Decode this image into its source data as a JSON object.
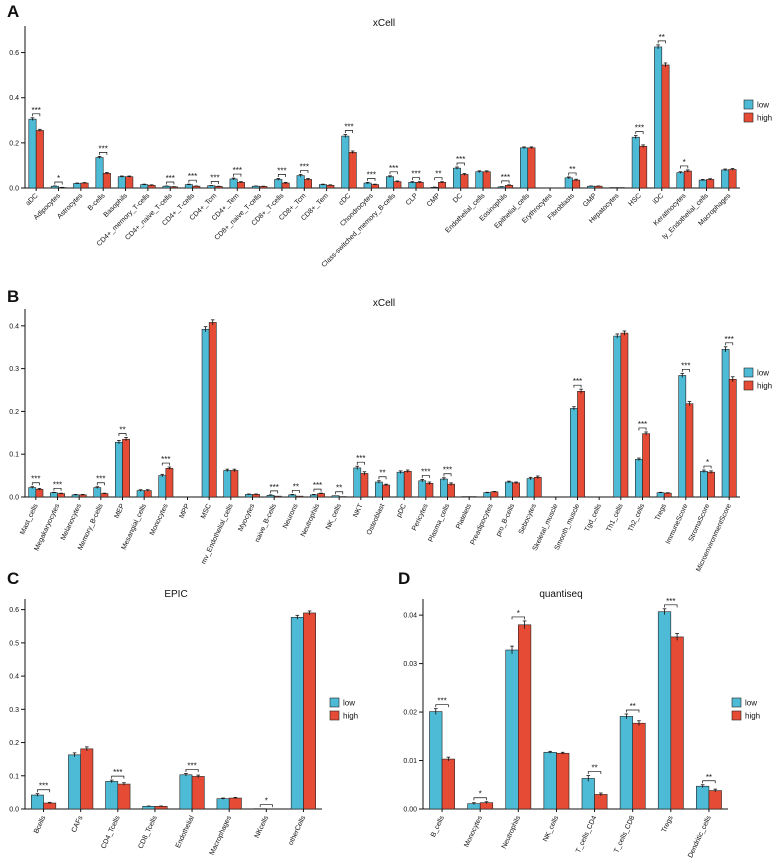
{
  "colors": {
    "low": "#4DBBD5",
    "high": "#E64B35",
    "error": "#111111"
  },
  "chart_data": [
    {
      "panel": "A",
      "type": "bar",
      "title": "xCell",
      "legend": [
        "low",
        "high"
      ],
      "ylim": [
        0,
        0.7
      ],
      "yticks": [
        0,
        0.2,
        0.4,
        0.6
      ],
      "ytick_labels": [
        "0.0",
        "0.2",
        "0.4",
        "0.6"
      ],
      "categories": [
        "aDC",
        "Adipocytes",
        "Astrocytes",
        "B-cells",
        "Basophils",
        "CD4+_memory_T-cells",
        "CD4+_naive_T-cells",
        "CD4+_T-cells",
        "CD4+_Tcm",
        "CD4+_Tem",
        "CD8+_naive_T-cells",
        "CD8+_T-cells",
        "CD8+_Tcm",
        "CD8+_Tem",
        "cDC",
        "Chondrocytes",
        "Class-switched_memory_B-cells",
        "CLP",
        "CMP",
        "DC",
        "Endothelial_cells",
        "Eosinophils",
        "Epithelial_cells",
        "Erythrocytes",
        "Fibroblasts",
        "GMP",
        "Hepatocytes",
        "HSC",
        "iDC",
        "Keratinocytes",
        "ly_Endothelial_cells",
        "Macrophages"
      ],
      "series": [
        {
          "name": "low",
          "values": [
            0.305,
            0.008,
            0.02,
            0.135,
            0.05,
            0.015,
            0.008,
            0.015,
            0.01,
            0.04,
            0.008,
            0.038,
            0.055,
            0.015,
            0.23,
            0.022,
            0.05,
            0.025,
            0.003,
            0.088,
            0.072,
            0.005,
            0.178,
            0.001,
            0.045,
            0.008,
            0.002,
            0.225,
            0.625,
            0.068,
            0.035,
            0.08
          ],
          "errors": [
            0.006,
            0.001,
            0.002,
            0.005,
            0.003,
            0.002,
            0.001,
            0.002,
            0.001,
            0.004,
            0.001,
            0.004,
            0.005,
            0.002,
            0.007,
            0.003,
            0.004,
            0.003,
            0.001,
            0.005,
            0.004,
            0.001,
            0.004,
            0.0,
            0.004,
            0.001,
            0.0,
            0.007,
            0.009,
            0.004,
            0.003,
            0.004
          ]
        },
        {
          "name": "high",
          "values": [
            0.255,
            0.002,
            0.022,
            0.065,
            0.05,
            0.012,
            0.005,
            0.008,
            0.007,
            0.025,
            0.007,
            0.022,
            0.038,
            0.012,
            0.158,
            0.015,
            0.028,
            0.025,
            0.025,
            0.06,
            0.072,
            0.012,
            0.178,
            0.001,
            0.035,
            0.008,
            0.002,
            0.185,
            0.545,
            0.075,
            0.038,
            0.082
          ],
          "errors": [
            0.005,
            0.001,
            0.002,
            0.004,
            0.003,
            0.002,
            0.001,
            0.001,
            0.001,
            0.003,
            0.001,
            0.003,
            0.004,
            0.002,
            0.006,
            0.002,
            0.003,
            0.003,
            0.003,
            0.004,
            0.004,
            0.002,
            0.004,
            0.0,
            0.004,
            0.001,
            0.0,
            0.006,
            0.009,
            0.005,
            0.003,
            0.004
          ]
        }
      ],
      "significance": [
        "***",
        "*",
        "",
        "***",
        "",
        "",
        "***",
        "***",
        "***",
        "***",
        "",
        "***",
        "***",
        "",
        "***",
        "***",
        "***",
        "***",
        "**",
        "***",
        "",
        "***",
        "",
        "",
        "**",
        "",
        "",
        "***",
        "**",
        "*",
        "",
        ""
      ]
    },
    {
      "panel": "B",
      "type": "bar",
      "title": "xCell",
      "legend": [
        "low",
        "high"
      ],
      "ylim": [
        0,
        0.43
      ],
      "yticks": [
        0,
        0.1,
        0.2,
        0.3,
        0.4
      ],
      "ytick_labels": [
        "0.0",
        "0.1",
        "0.2",
        "0.3",
        "0.4"
      ],
      "categories": [
        "Mast_cells",
        "Megakaryocytes",
        "Melanocytes",
        "Memory_B-cells",
        "MEP",
        "Mesangial_cells",
        "Monocytes",
        "MPP",
        "MSC",
        "mv_Endothelial_cells",
        "Myocytes",
        "naive_B-cells",
        "Neurons",
        "Neutrophils",
        "NK_cells",
        "NKT",
        "Osteoblast",
        "pDC",
        "Pericytes",
        "Plasma_cells",
        "Platelets",
        "Preadipocytes",
        "pro_B-cells",
        "Sebocytes",
        "Skeletal_muscle",
        "Smooth_muscle",
        "Tgd_cells",
        "Th1_cells",
        "Th2_cells",
        "Tregs",
        "ImmuneScore",
        "StromaScore",
        "MicroenvironmentScore"
      ],
      "series": [
        {
          "name": "low",
          "values": [
            0.022,
            0.01,
            0.005,
            0.022,
            0.128,
            0.015,
            0.05,
            0.0,
            0.392,
            0.062,
            0.006,
            0.004,
            0.005,
            0.005,
            0.003,
            0.068,
            0.035,
            0.058,
            0.038,
            0.042,
            0.001,
            0.01,
            0.035,
            0.043,
            0.0,
            0.207,
            0.0,
            0.376,
            0.088,
            0.01,
            0.284,
            0.06,
            0.345
          ],
          "errors": [
            0.002,
            0.001,
            0.001,
            0.002,
            0.004,
            0.002,
            0.003,
            0.0,
            0.006,
            0.003,
            0.001,
            0.001,
            0.001,
            0.001,
            0.0,
            0.004,
            0.003,
            0.003,
            0.003,
            0.003,
            0.0,
            0.001,
            0.002,
            0.003,
            0.0,
            0.004,
            0.0,
            0.005,
            0.003,
            0.001,
            0.005,
            0.003,
            0.006
          ]
        },
        {
          "name": "high",
          "values": [
            0.018,
            0.008,
            0.005,
            0.008,
            0.135,
            0.015,
            0.067,
            0.0,
            0.408,
            0.062,
            0.006,
            0.002,
            0.002,
            0.008,
            0.001,
            0.055,
            0.028,
            0.06,
            0.032,
            0.03,
            0.001,
            0.012,
            0.033,
            0.046,
            0.0,
            0.247,
            0.0,
            0.383,
            0.148,
            0.009,
            0.218,
            0.058,
            0.275
          ],
          "errors": [
            0.002,
            0.001,
            0.001,
            0.001,
            0.004,
            0.002,
            0.003,
            0.0,
            0.006,
            0.003,
            0.001,
            0.0,
            0.0,
            0.001,
            0.0,
            0.004,
            0.002,
            0.003,
            0.003,
            0.003,
            0.0,
            0.001,
            0.002,
            0.003,
            0.0,
            0.005,
            0.0,
            0.005,
            0.004,
            0.001,
            0.005,
            0.003,
            0.006
          ]
        }
      ],
      "significance": [
        "***",
        "***",
        "",
        "***",
        "**",
        "",
        "***",
        "",
        "",
        "",
        "",
        "***",
        "**",
        "***",
        "**",
        "***",
        "**",
        "",
        "***",
        "***",
        "",
        "",
        "",
        "",
        "",
        "***",
        "",
        "",
        "***",
        "",
        "***",
        "*",
        "***"
      ]
    },
    {
      "panel": "C",
      "type": "bar",
      "title": "EPIC",
      "legend": [
        "low",
        "high"
      ],
      "ylim": [
        0,
        0.62
      ],
      "yticks": [
        0,
        0.1,
        0.2,
        0.3,
        0.4,
        0.5,
        0.6
      ],
      "ytick_labels": [
        "0.0",
        "0.1",
        "0.2",
        "0.3",
        "0.4",
        "0.5",
        "0.6"
      ],
      "categories": [
        "Bcells",
        "CAFs",
        "CD4_Tcells",
        "CD8_Tcells",
        "Endothelial",
        "Macrophages",
        "NKcells",
        "otherCells"
      ],
      "series": [
        {
          "name": "low",
          "values": [
            0.042,
            0.163,
            0.083,
            0.008,
            0.103,
            0.031,
            0.001,
            0.577
          ],
          "errors": [
            0.004,
            0.006,
            0.004,
            0.001,
            0.004,
            0.002,
            0.0,
            0.006
          ]
        },
        {
          "name": "high",
          "values": [
            0.018,
            0.181,
            0.075,
            0.008,
            0.098,
            0.033,
            0.0,
            0.59
          ],
          "errors": [
            0.002,
            0.006,
            0.004,
            0.001,
            0.004,
            0.002,
            0.0,
            0.006
          ]
        }
      ],
      "significance": [
        "***",
        "",
        "***",
        "",
        "***",
        "",
        "*",
        ""
      ]
    },
    {
      "panel": "D",
      "type": "bar",
      "title": "quantiseq",
      "legend": [
        "low",
        "high"
      ],
      "ylim": [
        0,
        0.0425
      ],
      "yticks": [
        0,
        0.01,
        0.02,
        0.03,
        0.04
      ],
      "ytick_labels": [
        "0.00",
        "0.01",
        "0.02",
        "0.03",
        "0.04"
      ],
      "categories": [
        "B_cells",
        "Monocytes",
        "Neutrophils",
        "NK_cells",
        "T_cells_CD4",
        "T_cells_CD8",
        "Tregs",
        "Dendritic_cells"
      ],
      "series": [
        {
          "name": "low",
          "values": [
            0.0201,
            0.0011,
            0.0328,
            0.0117,
            0.0063,
            0.0191,
            0.0407,
            0.0047
          ],
          "errors": [
            0.0006,
            0.0002,
            0.0008,
            0.0002,
            0.0006,
            0.0005,
            0.0006,
            0.0003
          ]
        },
        {
          "name": "high",
          "values": [
            0.0103,
            0.0013,
            0.038,
            0.0115,
            0.003,
            0.0177,
            0.0355,
            0.0038
          ],
          "errors": [
            0.0004,
            0.0002,
            0.0008,
            0.0002,
            0.0003,
            0.0005,
            0.0007,
            0.0003
          ]
        }
      ],
      "significance": [
        "***",
        "*",
        "*",
        "",
        "**",
        "**",
        "***",
        "**"
      ]
    }
  ]
}
